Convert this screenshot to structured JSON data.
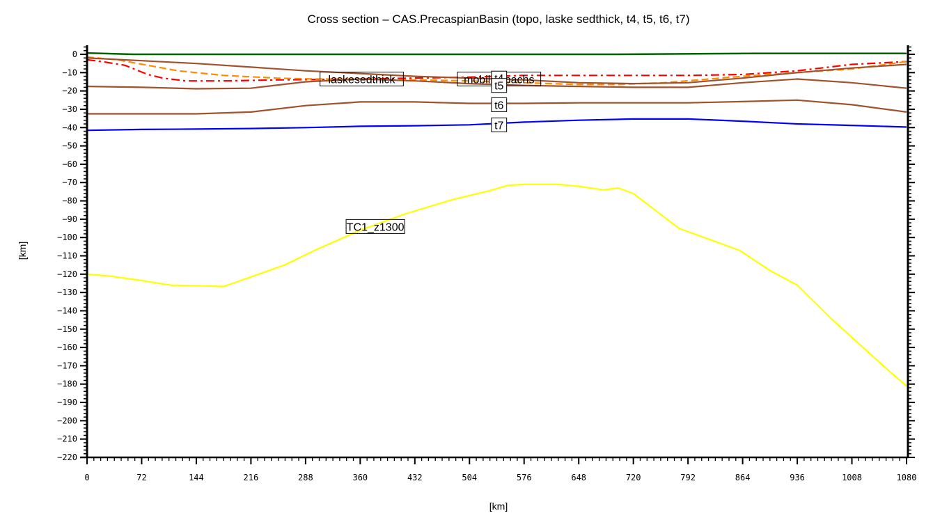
{
  "chart_data": {
    "type": "line",
    "title": "Cross section – CAS.PrecaspianBasin (topo, laske sedthick, t4, t5, t6, t7)",
    "xlabel": "[km]",
    "ylabel": "[km]",
    "xlim": [
      0,
      1080
    ],
    "ylim": [
      -220,
      5
    ],
    "grid": false,
    "legend": "inline labels",
    "x_ticks": [
      0,
      72,
      144,
      216,
      288,
      360,
      432,
      504,
      576,
      648,
      720,
      792,
      864,
      936,
      1008,
      1080
    ],
    "y_ticks": [
      0,
      -10,
      -20,
      -30,
      -40,
      -50,
      -60,
      -70,
      -80,
      -90,
      -100,
      -110,
      -120,
      -130,
      -140,
      -150,
      -160,
      -170,
      -180,
      -190,
      -200,
      -210,
      -220
    ],
    "series": [
      {
        "name": "topo",
        "color": "#006400",
        "style": "solid",
        "x": [
          0,
          20,
          60,
          700,
          880,
          1080
        ],
        "y": [
          0.7,
          0.5,
          0.0,
          0.0,
          0.5,
          0.5
        ]
      },
      {
        "name": "laskesedthick",
        "color": "#ff0000",
        "style": "dashdot",
        "x": [
          0,
          20,
          50,
          80,
          100,
          130,
          180,
          250,
          360,
          430,
          500,
          576,
          648,
          720,
          792,
          864,
          936,
          1008,
          1080
        ],
        "y": [
          -3,
          -4,
          -6,
          -11,
          -13,
          -14.5,
          -14.5,
          -14,
          -13.5,
          -13,
          -12.5,
          -11.5,
          -11.5,
          -11.5,
          -11.5,
          -11,
          -9,
          -5.5,
          -4
        ]
      },
      {
        "name": "mobilisopachs",
        "color": "#ff8c00",
        "style": "dashed",
        "x": [
          0,
          40,
          80,
          120,
          180,
          250,
          300,
          360,
          432,
          504,
          576,
          648,
          700,
          760,
          820,
          864,
          936,
          1008,
          1080
        ],
        "y": [
          -1.5,
          -3,
          -6,
          -9,
          -11.5,
          -13,
          -13.5,
          -13.5,
          -14,
          -14.5,
          -15.5,
          -16.5,
          -16.5,
          -15.5,
          -13.5,
          -12,
          -10,
          -8,
          -4
        ]
      },
      {
        "name": "t4",
        "color": "#a0522d",
        "style": "solid",
        "x": [
          0,
          72,
          144,
          216,
          288,
          360,
          432,
          504,
          576,
          648,
          720,
          792,
          864,
          936,
          1008,
          1080
        ],
        "y": [
          -2,
          -3.5,
          -5,
          -7,
          -9,
          -10.5,
          -12,
          -13,
          -14,
          -15.5,
          -16,
          -15.5,
          -13,
          -10,
          -7.5,
          -5.5
        ]
      },
      {
        "name": "t5",
        "color": "#a0522d",
        "style": "solid",
        "x": [
          0,
          72,
          144,
          216,
          288,
          360,
          432,
          504,
          576,
          648,
          720,
          792,
          864,
          936,
          1008,
          1080
        ],
        "y": [
          -17.5,
          -18,
          -18.8,
          -18.5,
          -15,
          -13.5,
          -14.5,
          -16,
          -17,
          -17.5,
          -18,
          -18,
          -15.5,
          -13.5,
          -15.5,
          -18.5
        ]
      },
      {
        "name": "t6",
        "color": "#a0522d",
        "style": "solid",
        "x": [
          0,
          72,
          144,
          216,
          288,
          360,
          432,
          504,
          576,
          648,
          720,
          792,
          864,
          936,
          1008,
          1080
        ],
        "y": [
          -32.5,
          -32.5,
          -32.5,
          -31.5,
          -28,
          -26,
          -26,
          -26.8,
          -26.8,
          -26.5,
          -26.5,
          -26.5,
          -25.8,
          -25,
          -27.5,
          -31.5
        ]
      },
      {
        "name": "t7",
        "color": "#0000ff",
        "style": "solid",
        "x": [
          0,
          72,
          144,
          216,
          288,
          360,
          432,
          504,
          576,
          648,
          720,
          792,
          864,
          936,
          1008,
          1080
        ],
        "y": [
          -41.5,
          -41,
          -40.8,
          -40.5,
          -40,
          -39.3,
          -39,
          -38.5,
          -37,
          -36,
          -35.3,
          -35.3,
          -36.5,
          -38,
          -38.8,
          -39.7
        ]
      },
      {
        "name": "TC1_z1300",
        "color": "#ffff00",
        "style": "solid",
        "x": [
          0,
          30,
          72,
          110,
          144,
          180,
          216,
          260,
          300,
          360,
          420,
          480,
          530,
          555,
          576,
          620,
          648,
          680,
          700,
          720,
          750,
          780,
          820,
          860,
          900,
          936,
          980,
          1020,
          1060,
          1080
        ],
        "y": [
          -120,
          -121,
          -123.5,
          -126,
          -126.3,
          -126.7,
          -121.5,
          -115,
          -107,
          -96,
          -87,
          -79.5,
          -74.5,
          -71.5,
          -71,
          -71,
          -72,
          -74,
          -73,
          -76,
          -85.5,
          -95,
          -101,
          -107,
          -118,
          -126,
          -144,
          -159,
          -174,
          -181
        ]
      }
    ],
    "annotations": [
      {
        "text": "laskesedthick",
        "x": 362,
        "y": -13.5
      },
      {
        "text": "mobilisopachs",
        "x": 543,
        "y": -13.5
      },
      {
        "text": "t4",
        "x": 543,
        "y": -13
      },
      {
        "text": "t5",
        "x": 543,
        "y": -17
      },
      {
        "text": "t6",
        "x": 543,
        "y": -27.5
      },
      {
        "text": "t7",
        "x": 543,
        "y": -38.5
      },
      {
        "text": "TC1_z1300",
        "x": 380,
        "y": -94
      }
    ]
  }
}
